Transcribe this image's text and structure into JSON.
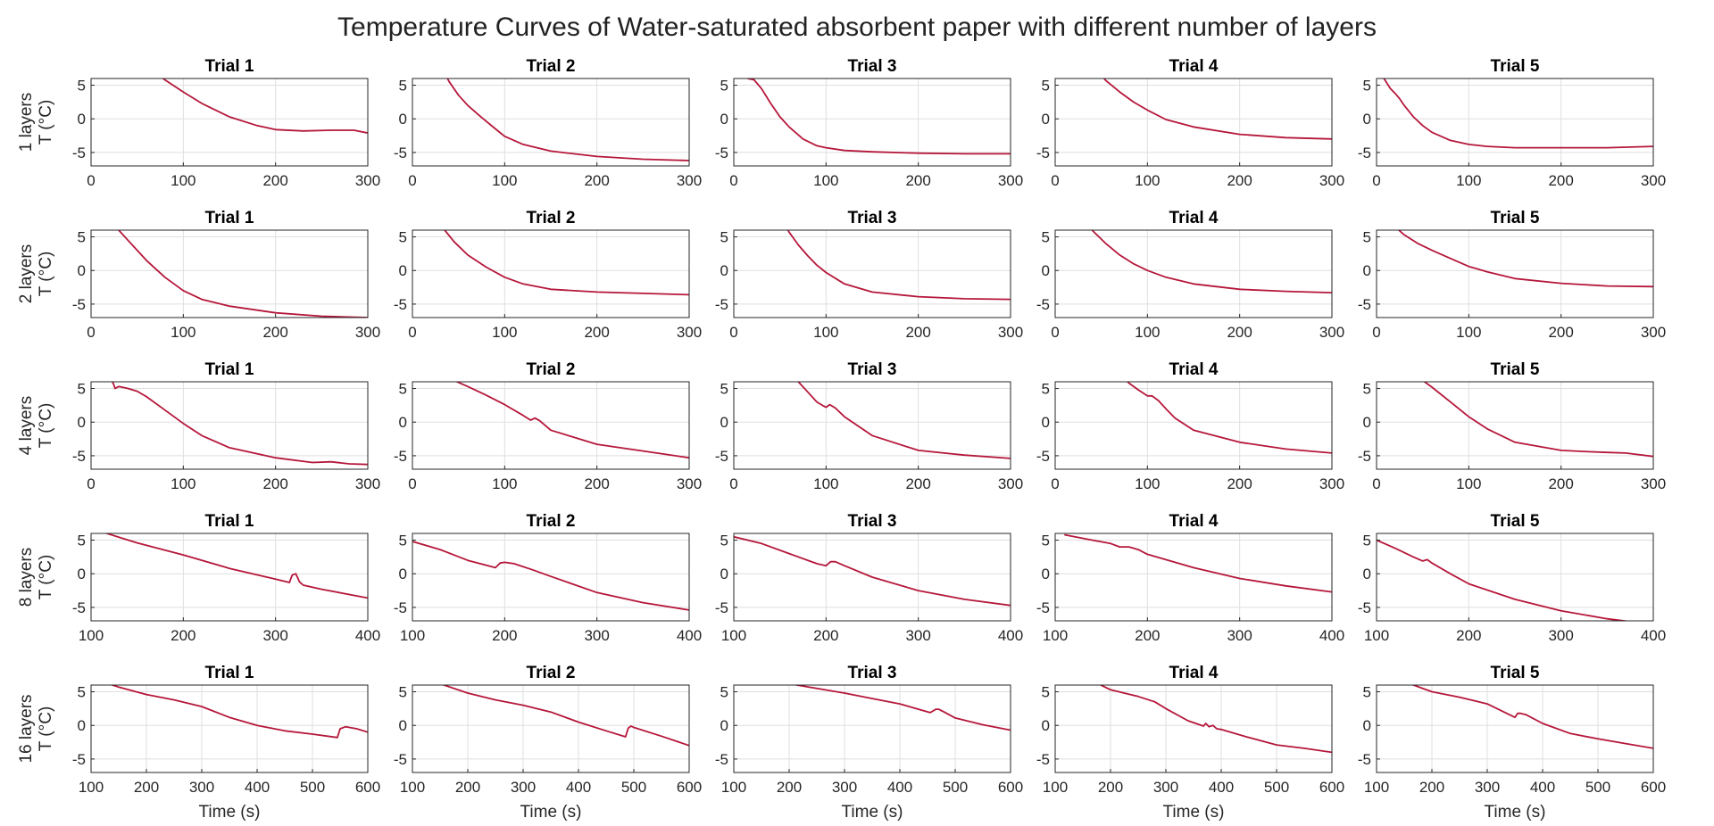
{
  "chart_data": {
    "type": "line",
    "title": "Temperature Curves of Water-saturated absorbent paper with different number of layers",
    "line_color": "#b5173a",
    "grid": true,
    "rows": [
      {
        "ylabel_line1": "1 layers",
        "ylabel_line2": "T (°C)",
        "xlim": [
          0,
          300
        ],
        "xticks": [
          0,
          100,
          200,
          300
        ],
        "ylim": [
          -7,
          6
        ],
        "yticks": [
          5,
          0,
          -5
        ],
        "xlabel": "",
        "panels": [
          {
            "title": "Trial 1",
            "x": [
              60,
              80,
              100,
              120,
              150,
              180,
              200,
              230,
              260,
              285,
              300
            ],
            "y": [
              8,
              5.8,
              4,
              2.3,
              0.3,
              -1,
              -1.6,
              -1.8,
              -1.7,
              -1.7,
              -2.1
            ]
          },
          {
            "title": "Trial 2",
            "x": [
              30,
              40,
              50,
              60,
              75,
              90,
              100,
              120,
              150,
              200,
              250,
              300
            ],
            "y": [
              8,
              5.5,
              3.5,
              2,
              0.2,
              -1.5,
              -2.6,
              -3.8,
              -4.8,
              -5.6,
              -6,
              -6.2
            ]
          },
          {
            "title": "Trial 3",
            "x": [
              15,
              22,
              30,
              40,
              50,
              60,
              75,
              90,
              100,
              120,
              150,
              200,
              250,
              300
            ],
            "y": [
              6,
              5.8,
              4.5,
              2.3,
              0.3,
              -1.2,
              -3,
              -4,
              -4.3,
              -4.7,
              -4.9,
              -5.1,
              -5.2,
              -5.2
            ]
          },
          {
            "title": "Trial 4",
            "x": [
              40,
              55,
              70,
              85,
              100,
              120,
              150,
              200,
              250,
              300
            ],
            "y": [
              8,
              5.7,
              4,
              2.5,
              1.3,
              -0.1,
              -1.2,
              -2.3,
              -2.8,
              -3
            ]
          },
          {
            "title": "Trial 5",
            "x": [
              8,
              15,
              20,
              25,
              30,
              40,
              50,
              60,
              80,
              100,
              120,
              150,
              200,
              250,
              300
            ],
            "y": [
              6,
              4.5,
              3.8,
              3,
              2,
              0.3,
              -1,
              -2,
              -3.2,
              -3.8,
              -4.1,
              -4.3,
              -4.3,
              -4.3,
              -4.1
            ]
          }
        ]
      },
      {
        "ylabel_line1": "2 layers",
        "ylabel_line2": "T (°C)",
        "xlim": [
          0,
          300
        ],
        "xticks": [
          0,
          100,
          200,
          300
        ],
        "ylim": [
          -7,
          6
        ],
        "yticks": [
          5,
          0,
          -5
        ],
        "xlabel": "",
        "panels": [
          {
            "title": "Trial 1",
            "x": [
              20,
              30,
              40,
              50,
              60,
              80,
              100,
              120,
              150,
              200,
              250,
              300
            ],
            "y": [
              8,
              6,
              4.5,
              3,
              1.5,
              -1,
              -3,
              -4.3,
              -5.3,
              -6.3,
              -6.8,
              -7
            ]
          },
          {
            "title": "Trial 2",
            "x": [
              25,
              35,
              45,
              60,
              80,
              100,
              120,
              150,
              200,
              250,
              300
            ],
            "y": [
              8,
              6,
              4.3,
              2.3,
              0.5,
              -1,
              -2,
              -2.8,
              -3.2,
              -3.4,
              -3.6
            ]
          },
          {
            "title": "Trial 3",
            "x": [
              50,
              60,
              70,
              80,
              90,
              100,
              120,
              150,
              200,
              250,
              300
            ],
            "y": [
              8,
              5.7,
              3.8,
              2.2,
              0.8,
              -0.3,
              -2,
              -3.2,
              -3.9,
              -4.2,
              -4.3
            ]
          },
          {
            "title": "Trial 4",
            "x": [
              30,
              40,
              55,
              70,
              85,
              100,
              120,
              150,
              200,
              250,
              300
            ],
            "y": [
              8,
              6,
              4,
              2.3,
              1,
              0,
              -1,
              -2,
              -2.8,
              -3.1,
              -3.3
            ]
          },
          {
            "title": "Trial 5",
            "x": [
              10,
              20,
              30,
              45,
              60,
              80,
              100,
              120,
              150,
              200,
              250,
              300
            ],
            "y": [
              8,
              6.5,
              5.3,
              4,
              3,
              1.8,
              0.6,
              -0.2,
              -1.2,
              -1.9,
              -2.3,
              -2.4
            ]
          }
        ]
      },
      {
        "ylabel_line1": "4 layers",
        "ylabel_line2": "T (°C)",
        "xlim": [
          0,
          300
        ],
        "xticks": [
          0,
          100,
          200,
          300
        ],
        "ylim": [
          -7,
          6
        ],
        "yticks": [
          5,
          0,
          -5
        ],
        "xlabel": "",
        "panels": [
          {
            "title": "Trial 1",
            "x": [
              20,
              24,
              26,
              30,
              40,
              50,
              60,
              80,
              100,
              120,
              150,
              200,
              240,
              260,
              280,
              300
            ],
            "y": [
              6.5,
              5.8,
              5,
              5.3,
              5,
              4.6,
              3.8,
              1.8,
              -0.2,
              -2,
              -3.8,
              -5.3,
              -6,
              -5.9,
              -6.2,
              -6.3
            ]
          },
          {
            "title": "Trial 2",
            "x": [
              40,
              60,
              80,
              100,
              120,
              128,
              133,
              138,
              150,
              200,
              250,
              300
            ],
            "y": [
              6.5,
              5.3,
              4,
              2.6,
              1,
              0.3,
              0.6,
              0.2,
              -1.2,
              -3.3,
              -4.3,
              -5.3
            ]
          },
          {
            "title": "Trial 3",
            "x": [
              60,
              70,
              80,
              90,
              96,
              100,
              104,
              110,
              120,
              150,
              200,
              250,
              300
            ],
            "y": [
              8,
              6,
              4.5,
              3,
              2.5,
              2.2,
              2.6,
              2.1,
              0.8,
              -2,
              -4.2,
              -4.9,
              -5.4
            ]
          },
          {
            "title": "Trial 4",
            "x": [
              70,
              80,
              90,
              100,
              105,
              112,
              120,
              130,
              150,
              200,
              250,
              300
            ],
            "y": [
              7,
              5.8,
              4.8,
              3.9,
              3.9,
              3.2,
              2,
              0.6,
              -1.2,
              -3,
              -4,
              -4.6
            ]
          },
          {
            "title": "Trial 5",
            "x": [
              40,
              50,
              60,
              80,
              100,
              120,
              150,
              200,
              230,
              250,
              270,
              300
            ],
            "y": [
              8,
              6.2,
              5.2,
              3,
              0.8,
              -1,
              -3,
              -4.2,
              -4.4,
              -4.5,
              -4.6,
              -5.1
            ]
          }
        ]
      },
      {
        "ylabel_line1": "8 layers",
        "ylabel_line2": "T (°C)",
        "xlim": [
          100,
          400
        ],
        "xticks": [
          100,
          200,
          300,
          400
        ],
        "ylim": [
          -7,
          6
        ],
        "yticks": [
          5,
          0,
          -5
        ],
        "xlabel": "",
        "panels": [
          {
            "title": "Trial 1",
            "x": [
              110,
              150,
              200,
              250,
              300,
              315,
              318,
              322,
              326,
              330,
              350,
              400
            ],
            "y": [
              6.3,
              4.6,
              2.8,
              0.8,
              -0.8,
              -1.3,
              -0.2,
              0,
              -1.2,
              -1.7,
              -2.3,
              -3.6
            ]
          },
          {
            "title": "Trial 2",
            "x": [
              100,
              130,
              160,
              190,
              195,
              200,
              210,
              230,
              250,
              300,
              350,
              400
            ],
            "y": [
              4.8,
              3.6,
              2,
              0.9,
              1.6,
              1.7,
              1.5,
              0.6,
              -0.4,
              -2.8,
              -4.3,
              -5.4
            ]
          },
          {
            "title": "Trial 3",
            "x": [
              100,
              130,
              160,
              190,
              200,
              205,
              210,
              220,
              250,
              300,
              350,
              400
            ],
            "y": [
              5.5,
              4.5,
              3,
              1.5,
              1.2,
              1.8,
              1.8,
              1.2,
              -0.5,
              -2.5,
              -3.8,
              -4.7
            ]
          },
          {
            "title": "Trial 4",
            "x": [
              110,
              140,
              160,
              170,
              180,
              190,
              200,
              250,
              300,
              350,
              400
            ],
            "y": [
              5.8,
              5,
              4.5,
              4,
              4,
              3.6,
              2.9,
              0.9,
              -0.7,
              -1.8,
              -2.7
            ]
          },
          {
            "title": "Trial 5",
            "x": [
              100,
              120,
              140,
              150,
              155,
              160,
              180,
              200,
              250,
              300,
              350,
              380
            ],
            "y": [
              5,
              3.8,
              2.5,
              1.9,
              2.1,
              1.6,
              0,
              -1.5,
              -3.8,
              -5.5,
              -6.7,
              -7.2
            ]
          }
        ]
      },
      {
        "ylabel_line1": "16 layers",
        "ylabel_line2": "T (°C)",
        "xlim": [
          100,
          600
        ],
        "xticks": [
          100,
          200,
          300,
          400,
          500,
          600
        ],
        "ylim": [
          -7,
          6
        ],
        "yticks": [
          5,
          0,
          -5
        ],
        "xlabel": "Time (s)",
        "panels": [
          {
            "title": "Trial 1",
            "x": [
              120,
              150,
              200,
              250,
              300,
              350,
              400,
              450,
              500,
              545,
              550,
              560,
              580,
              600
            ],
            "y": [
              6.5,
              5.7,
              4.6,
              3.8,
              2.8,
              1.2,
              0,
              -0.8,
              -1.3,
              -1.8,
              -0.5,
              -0.2,
              -0.5,
              -1
            ]
          },
          {
            "title": "Trial 2",
            "x": [
              150,
              200,
              250,
              300,
              350,
              400,
              450,
              485,
              490,
              495,
              500,
              550,
              600
            ],
            "y": [
              6.2,
              4.8,
              3.8,
              3,
              2,
              0.5,
              -0.8,
              -1.7,
              -0.4,
              -0.1,
              -0.3,
              -1.6,
              -3
            ]
          },
          {
            "title": "Trial 3",
            "x": [
              200,
              250,
              300,
              350,
              400,
              455,
              465,
              470,
              480,
              500,
              550,
              600
            ],
            "y": [
              6.2,
              5.5,
              4.8,
              4,
              3.2,
              1.9,
              2.4,
              2.4,
              2,
              1.1,
              0.1,
              -0.7
            ]
          },
          {
            "title": "Trial 4",
            "x": [
              170,
              200,
              250,
              280,
              300,
              340,
              368,
              372,
              378,
              385,
              392,
              400,
              450,
              500,
              550,
              600
            ],
            "y": [
              6.5,
              5.3,
              4.3,
              3.5,
              2.5,
              0.7,
              -0.1,
              0.3,
              -0.2,
              0,
              -0.5,
              -0.6,
              -1.8,
              -2.9,
              -3.4,
              -4
            ]
          },
          {
            "title": "Trial 5",
            "x": [
              150,
              200,
              250,
              300,
              350,
              355,
              360,
              370,
              400,
              450,
              500,
              550,
              600
            ],
            "y": [
              6.5,
              5,
              4.2,
              3.2,
              1.2,
              1.8,
              1.8,
              1.6,
              0.3,
              -1.2,
              -2,
              -2.7,
              -3.4
            ]
          }
        ]
      }
    ]
  }
}
